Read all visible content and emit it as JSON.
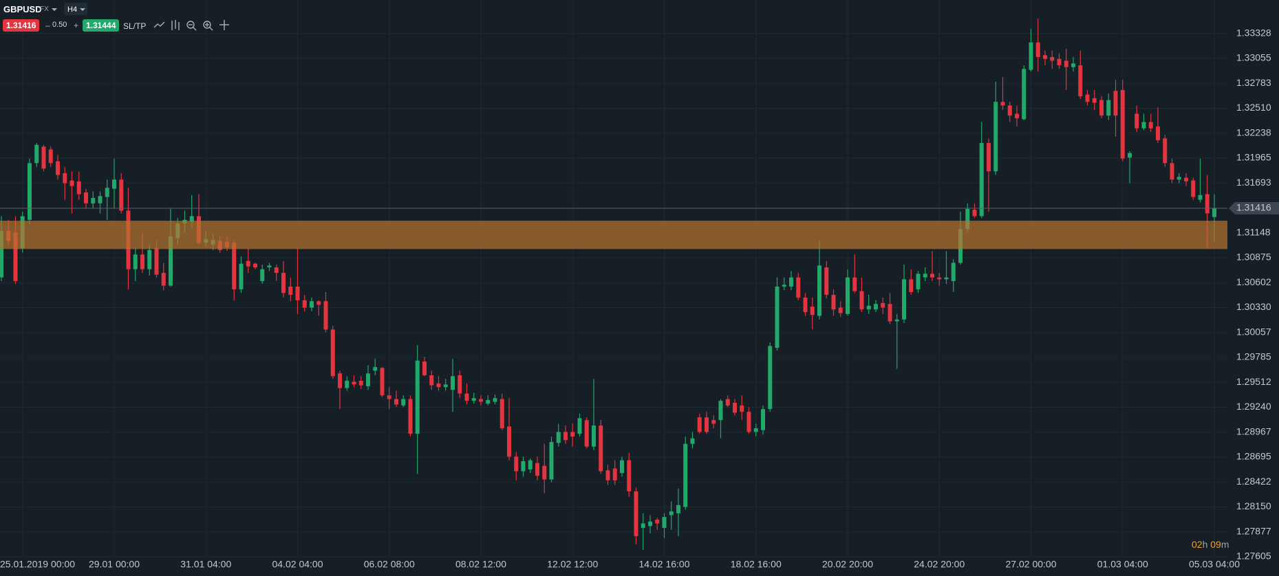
{
  "toolbar": {
    "symbol": "GBPUSD",
    "market": "FX",
    "timeframe": "H4",
    "bid": "1.31416",
    "minus": "–",
    "spread": "0.50",
    "plus": "+",
    "ask": "1.31444",
    "sltp": "SL/TP"
  },
  "countdown": {
    "hours": "02",
    "h": "h",
    "minutes": "09",
    "m": "m"
  },
  "chart_data": {
    "type": "candlestick",
    "categories": [
      null,
      null,
      null,
      "25.01.2019 00:00",
      null,
      null,
      null,
      null,
      null,
      null,
      null,
      null,
      null,
      null,
      null,
      null,
      "29.01 00:00",
      null,
      null,
      null,
      null,
      null,
      null,
      null,
      null,
      null,
      null,
      null,
      null,
      "31.01 04:00",
      null,
      null,
      null,
      null,
      null,
      null,
      null,
      null,
      null,
      null,
      null,
      null,
      "04.02 04:00",
      null,
      null,
      null,
      null,
      null,
      null,
      null,
      null,
      null,
      null,
      null,
      null,
      "06.02 08:00",
      null,
      null,
      null,
      null,
      null,
      null,
      null,
      null,
      null,
      null,
      null,
      null,
      "08.02 12:00",
      null,
      null,
      null,
      null,
      null,
      null,
      null,
      null,
      null,
      null,
      null,
      null,
      "12.02 12:00",
      null,
      null,
      null,
      null,
      null,
      null,
      null,
      null,
      null,
      null,
      null,
      null,
      "14.02 16:00",
      null,
      null,
      null,
      null,
      null,
      null,
      null,
      null,
      null,
      null,
      null,
      null,
      "18.02 16:00",
      null,
      null,
      null,
      null,
      null,
      null,
      null,
      null,
      null,
      null,
      null,
      null,
      "20.02 20:00",
      null,
      null,
      null,
      null,
      null,
      null,
      null,
      null,
      null,
      null,
      null,
      null,
      "24.02 20:00",
      null,
      null,
      null,
      null,
      null,
      null,
      null,
      null,
      null,
      null,
      null,
      null,
      "27.02 00:00",
      null,
      null,
      null,
      null,
      null,
      null,
      null,
      null,
      null,
      null,
      null,
      null,
      "01.03 04:00",
      null,
      null,
      null,
      null,
      null,
      null,
      null,
      null,
      null,
      null,
      null,
      null,
      "05.03 04:00"
    ],
    "open": [
      1.3066,
      1.3117,
      1.3115,
      1.3098,
      1.3129,
      1.3191,
      1.3209,
      1.3206,
      1.3193,
      1.318,
      1.3172,
      1.3171,
      1.3159,
      1.3147,
      1.3147,
      1.3154,
      1.3163,
      1.3173,
      1.3139,
      1.3075,
      1.3091,
      1.3075,
      1.3098,
      1.3071,
      1.3057,
      1.3109,
      1.3125,
      1.3127,
      1.3133,
      1.3104,
      1.3102,
      1.3106,
      1.3105,
      1.3104,
      1.3053,
      1.3084,
      1.3081,
      1.3062,
      1.3077,
      1.3077,
      1.3071,
      1.3056,
      1.3056,
      1.3041,
      1.3033,
      1.304,
      1.304,
      1.3009,
      1.2961,
      1.2945,
      1.2952,
      1.2953,
      1.2947,
      1.2964,
      1.2967,
      1.2937,
      1.2933,
      1.2926,
      1.2933,
      1.2895,
      1.2974,
      1.2959,
      1.295,
      1.2946,
      1.2943,
      1.2959,
      1.2939,
      1.2931,
      1.2933,
      1.2928,
      1.293,
      1.2933,
      1.2903,
      1.287,
      1.2854,
      1.2856,
      1.2863,
      1.286,
      1.2845,
      1.2885,
      1.2897,
      1.2897,
      1.2895,
      1.291,
      1.2881,
      1.2904,
      1.2855,
      1.2857,
      1.2852,
      1.2866,
      1.2832,
      1.2792,
      1.2794,
      1.2801,
      1.2792,
      1.2806,
      1.2808,
      1.2815,
      1.2884,
      1.2913,
      1.2913,
      1.291,
      1.291,
      1.2933,
      1.2929,
      1.2926,
      1.2919,
      1.2897,
      1.2899,
      1.2922,
      1.2989,
      1.3056,
      1.3056,
      1.3066,
      1.3044,
      1.3034,
      1.3024,
      1.3077,
      1.3047,
      1.3033,
      1.3026,
      1.3066,
      1.3051,
      1.3031,
      1.3031,
      1.3038,
      1.3037,
      1.3018,
      1.302,
      1.3064,
      1.3053,
      1.3066,
      1.307,
      1.3066,
      1.3064,
      1.3062,
      1.3082,
      1.3119,
      1.314,
      1.3133,
      1.3213,
      1.3182,
      1.3258,
      1.3254,
      1.3245,
      1.3239,
      1.3293,
      1.3323,
      1.3309,
      1.3307,
      1.3305,
      1.3303,
      1.3296,
      1.3298,
      1.3266,
      1.3262,
      1.326,
      1.3243,
      1.327,
      1.3271,
      1.3197,
      1.3245,
      1.3229,
      1.3236,
      1.3231,
      1.3218,
      1.3191,
      1.3173,
      1.3175,
      1.3172,
      1.3151,
      1.3157,
      1.3132
    ],
    "high": [
      1.3133,
      1.3129,
      1.3133,
      1.3138,
      1.3196,
      1.3213,
      1.3211,
      1.3209,
      1.32,
      1.3187,
      1.3182,
      1.3182,
      1.3163,
      1.316,
      1.316,
      1.3173,
      1.3196,
      1.318,
      1.3164,
      1.3098,
      1.3115,
      1.3102,
      1.3106,
      1.3082,
      1.3142,
      1.3131,
      1.3139,
      1.3156,
      1.3157,
      1.3117,
      1.3113,
      1.3111,
      1.3111,
      1.3106,
      1.3089,
      1.3098,
      1.3082,
      1.308,
      1.3082,
      1.308,
      1.3084,
      1.3066,
      1.3098,
      1.3047,
      1.3044,
      1.3041,
      1.305,
      1.3013,
      1.2964,
      1.2958,
      1.2959,
      1.2958,
      1.297,
      1.2977,
      1.2968,
      1.2946,
      1.2942,
      1.2937,
      1.2937,
      1.2992,
      1.2979,
      1.2964,
      1.2958,
      1.2955,
      1.2977,
      1.2964,
      1.295,
      1.294,
      1.2937,
      1.2937,
      1.2938,
      1.2939,
      1.2934,
      1.2875,
      1.287,
      1.2868,
      1.287,
      1.2884,
      1.2892,
      1.2906,
      1.2904,
      1.2906,
      1.2917,
      1.2913,
      1.2955,
      1.291,
      1.2861,
      1.2866,
      1.287,
      1.2874,
      1.2836,
      1.2808,
      1.2806,
      1.2803,
      1.2808,
      1.2821,
      1.2835,
      1.2892,
      1.2897,
      1.2917,
      1.2919,
      1.2915,
      1.2933,
      1.2937,
      1.2933,
      1.2937,
      1.2924,
      1.2906,
      1.2926,
      1.2995,
      1.3066,
      1.3066,
      1.3073,
      1.3071,
      1.3049,
      1.3044,
      1.3106,
      1.3084,
      1.3053,
      1.304,
      1.3075,
      1.3091,
      1.3066,
      1.3047,
      1.3041,
      1.3044,
      1.3049,
      1.3026,
      1.308,
      1.3075,
      1.3073,
      1.3077,
      1.3095,
      1.3071,
      1.3095,
      1.3086,
      1.3138,
      1.3147,
      1.3147,
      1.3236,
      1.3218,
      1.328,
      1.3285,
      1.3258,
      1.3254,
      1.3298,
      1.3338,
      1.3349,
      1.3314,
      1.3314,
      1.3311,
      1.3316,
      1.3307,
      1.3314,
      1.3271,
      1.3271,
      1.3264,
      1.3267,
      1.3282,
      1.3282,
      1.3204,
      1.3254,
      1.3245,
      1.3245,
      1.3252,
      1.3222,
      1.3196,
      1.318,
      1.318,
      1.3175,
      1.3196,
      1.3178,
      1.3157
    ],
    "low": [
      1.3062,
      1.3102,
      1.3059,
      1.3093,
      1.3124,
      1.3187,
      1.3182,
      1.3187,
      1.3173,
      1.3151,
      1.3136,
      1.3151,
      1.3142,
      1.3142,
      1.3136,
      1.3129,
      1.3142,
      1.3136,
      1.3053,
      1.3062,
      1.3071,
      1.3068,
      1.3066,
      1.3052,
      1.3056,
      1.3102,
      1.3115,
      1.312,
      1.3102,
      1.31,
      1.3096,
      1.3093,
      1.3095,
      1.3041,
      1.3049,
      1.3071,
      1.3075,
      1.3059,
      1.3073,
      1.3062,
      1.3044,
      1.304,
      1.3026,
      1.3029,
      1.3029,
      1.3024,
      1.3006,
      1.2955,
      1.2922,
      1.2942,
      1.2946,
      1.2944,
      1.2943,
      1.2959,
      1.2935,
      1.2922,
      1.2924,
      1.2924,
      1.2892,
      1.2851,
      1.2958,
      1.2943,
      1.2942,
      1.2942,
      1.2919,
      1.2934,
      1.2927,
      1.2928,
      1.2926,
      1.2926,
      1.2927,
      1.2899,
      1.2866,
      1.2844,
      1.2848,
      1.2852,
      1.2844,
      1.283,
      1.2842,
      1.2881,
      1.2884,
      1.2881,
      1.2892,
      1.2879,
      1.2877,
      1.2851,
      1.2839,
      1.2839,
      1.2848,
      1.2826,
      1.2774,
      1.2768,
      1.2786,
      1.279,
      1.2781,
      1.279,
      1.2783,
      1.2812,
      1.2879,
      1.2895,
      1.2895,
      1.2901,
      1.289,
      1.2924,
      1.2915,
      1.291,
      1.2895,
      1.2892,
      1.2894,
      1.2919,
      1.2986,
      1.3052,
      1.3052,
      1.3041,
      1.3024,
      1.3009,
      1.302,
      1.3043,
      1.3024,
      1.3023,
      1.3024,
      1.3049,
      1.3028,
      1.3026,
      1.3028,
      1.3026,
      1.3015,
      1.2966,
      1.3016,
      1.3047,
      1.3049,
      1.3062,
      1.3062,
      1.3057,
      1.3059,
      1.305,
      1.308,
      1.3115,
      1.3131,
      1.3131,
      1.3138,
      1.3178,
      1.3249,
      1.3236,
      1.3231,
      1.3238,
      1.3291,
      1.3291,
      1.3298,
      1.3294,
      1.3294,
      1.3271,
      1.3291,
      1.3261,
      1.3254,
      1.3249,
      1.324,
      1.3238,
      1.322,
      1.3193,
      1.3169,
      1.3225,
      1.3227,
      1.3225,
      1.3213,
      1.3187,
      1.3169,
      1.3169,
      1.3166,
      1.3151,
      1.3148,
      1.3098,
      1.3105
    ],
    "close": [
      1.3117,
      1.3106,
      1.3062,
      1.3133,
      1.3191,
      1.3211,
      1.3185,
      1.3191,
      1.3178,
      1.3169,
      1.3166,
      1.3157,
      1.3147,
      1.3153,
      1.3155,
      1.3164,
      1.3173,
      1.3139,
      1.3075,
      1.3091,
      1.3075,
      1.3096,
      1.3069,
      1.3057,
      1.3111,
      1.3125,
      1.3129,
      1.3133,
      1.3104,
      1.3108,
      1.3107,
      1.3096,
      1.3099,
      1.3053,
      1.3081,
      1.3078,
      1.3077,
      1.3075,
      1.3079,
      1.3071,
      1.3049,
      1.3047,
      1.3041,
      1.3033,
      1.304,
      1.3036,
      1.3009,
      1.2958,
      1.2945,
      1.2953,
      1.2949,
      1.2948,
      1.2961,
      1.2968,
      1.2937,
      1.2933,
      1.2927,
      1.2933,
      1.2895,
      1.2975,
      1.2959,
      1.2948,
      1.2946,
      1.2949,
      1.2958,
      1.2939,
      1.2931,
      1.2934,
      1.293,
      1.2932,
      1.2934,
      1.2901,
      1.287,
      1.2854,
      1.2865,
      1.2866,
      1.2849,
      1.2845,
      1.2886,
      1.2897,
      1.2888,
      1.2892,
      1.2912,
      1.2881,
      1.2904,
      1.2854,
      1.2844,
      1.2844,
      1.2866,
      1.2832,
      1.2783,
      1.2797,
      1.2799,
      1.2797,
      1.2804,
      1.281,
      1.2817,
      1.2884,
      1.289,
      1.2897,
      1.2897,
      1.2906,
      1.2931,
      1.2926,
      1.2918,
      1.2919,
      1.2897,
      1.2901,
      1.2922,
      1.2991,
      1.3056,
      1.3058,
      1.3066,
      1.3044,
      1.3028,
      1.3025,
      1.3079,
      1.3047,
      1.3031,
      1.3027,
      1.3066,
      1.3051,
      1.3031,
      1.3035,
      1.3037,
      1.3033,
      1.3018,
      1.302,
      1.3064,
      1.305,
      1.307,
      1.307,
      1.3066,
      1.3064,
      1.3066,
      1.3082,
      1.3119,
      1.3141,
      1.3133,
      1.3213,
      1.3182,
      1.3258,
      1.3254,
      1.3243,
      1.324,
      1.3294,
      1.3323,
      1.3307,
      1.3305,
      1.3303,
      1.3298,
      1.3296,
      1.33,
      1.3264,
      1.3258,
      1.3257,
      1.3243,
      1.326,
      1.3243,
      1.3196,
      1.3202,
      1.3229,
      1.3236,
      1.3229,
      1.3216,
      1.3191,
      1.3173,
      1.3176,
      1.3171,
      1.3154,
      1.3156,
      1.3136,
      1.31416
    ],
    "up_color": "#22a86b",
    "down_color": "#e3343f",
    "zone": {
      "from": 1.3097,
      "to": 1.3128,
      "color": "#b8742f"
    },
    "current_price": 1.31416,
    "ylim": [
      1.27605,
      1.33694
    ],
    "yticks": [
      1.33328,
      1.33055,
      1.32783,
      {
        "value": 1.3251,
        "label": "1.32510"
      },
      1.32238,
      1.31965,
      1.31693,
      1.31148,
      1.30875,
      1.30602,
      {
        "value": 1.3033,
        "label": "1.30330"
      },
      1.30057,
      1.29785,
      1.29512,
      {
        "value": 1.2924,
        "label": "1.29240"
      },
      1.28967,
      1.28695,
      1.28422,
      {
        "value": 1.2815,
        "label": "1.28150"
      },
      1.27877,
      1.27605
    ],
    "grid": true
  }
}
